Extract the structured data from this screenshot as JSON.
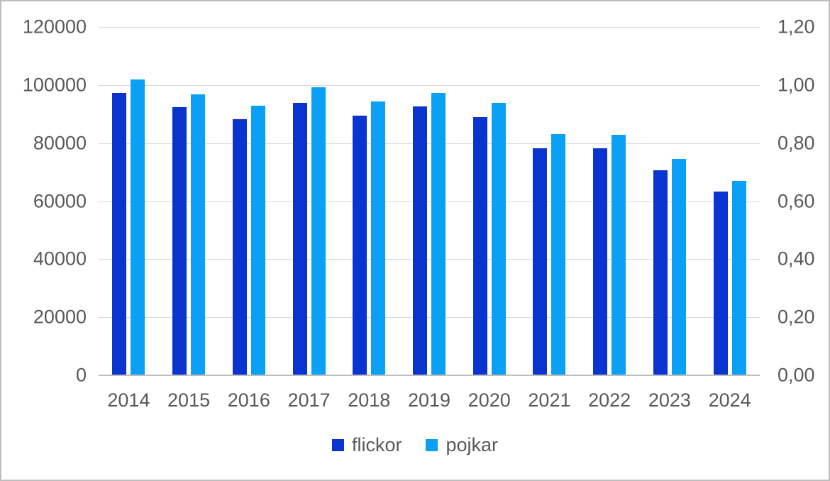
{
  "chart_data": {
    "type": "bar",
    "title": "",
    "xlabel": "",
    "ylabel": "",
    "categories": [
      "2014",
      "2015",
      "2016",
      "2017",
      "2018",
      "2019",
      "2020",
      "2021",
      "2022",
      "2023",
      "2024"
    ],
    "series": [
      {
        "name": "flickor",
        "color": "#0A34D0",
        "axis": "left",
        "values": [
          97300,
          92500,
          88200,
          93900,
          89400,
          92700,
          89000,
          78200,
          78100,
          70700,
          63300
        ]
      },
      {
        "name": "pojkar",
        "color": "#0AA0F5",
        "axis": "left",
        "values": [
          101800,
          96800,
          92900,
          99200,
          94300,
          97300,
          93800,
          83100,
          82900,
          74600,
          66900
        ]
      }
    ],
    "left_axis": {
      "min": 0,
      "max": 120000,
      "step": 20000,
      "tick_labels": [
        "0",
        "20000",
        "40000",
        "60000",
        "80000",
        "100000",
        "120000"
      ]
    },
    "right_axis": {
      "min": 0,
      "max": 1.2,
      "step": 0.2,
      "tick_labels": [
        "0,00",
        "0,20",
        "0,40",
        "0,60",
        "0,80",
        "1,00",
        "1,20"
      ]
    },
    "legend": {
      "position": "bottom",
      "entries": [
        "flickor",
        "pojkar"
      ]
    },
    "grid": true
  },
  "colors": {
    "flickor": "#0A34D0",
    "pojkar": "#0AA0F5",
    "axis_text": "#595959",
    "gridline": "#D9D9D9",
    "axis_line": "#BFBFBF",
    "background": "#FFFFFF",
    "border": "#BDBDBD"
  }
}
